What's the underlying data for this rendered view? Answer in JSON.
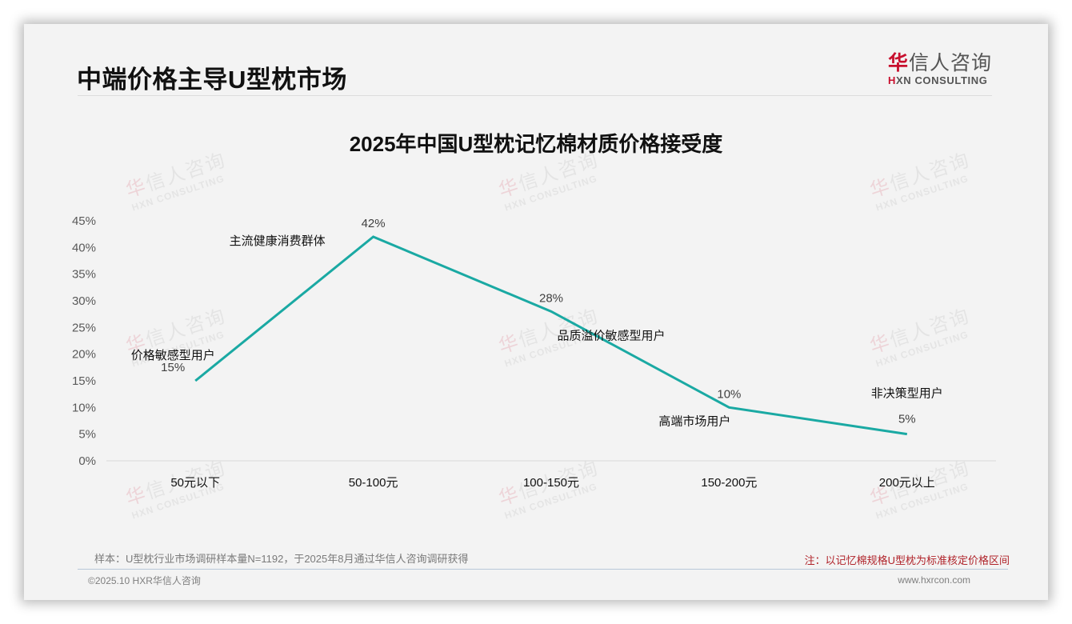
{
  "header": {
    "page_title": "中端价格主导U型枕市场",
    "logo": {
      "cn_first": "华",
      "cn_rest": "信人咨询",
      "en_first": "H",
      "en_rest": "XN CONSULTING"
    }
  },
  "chart_data": {
    "type": "line",
    "title": "2025年中国U型枕记忆棉材质价格接受度",
    "xlabel": "",
    "ylabel": "",
    "categories": [
      "50元以下",
      "50-100元",
      "100-150元",
      "150-200元",
      "200元以上"
    ],
    "values": [
      15,
      42,
      28,
      10,
      5
    ],
    "value_labels": [
      "15%",
      "42%",
      "28%",
      "10%",
      "5%"
    ],
    "annotations": [
      "价格敏感型用户",
      "主流健康消费群体",
      "品质溢价敏感型用户",
      "高端市场用户",
      "非决策型用户"
    ],
    "yticks": [
      "0%",
      "5%",
      "10%",
      "15%",
      "20%",
      "25%",
      "30%",
      "35%",
      "40%",
      "45%"
    ],
    "ylim": [
      0,
      45
    ],
    "grid": false,
    "legend": "none",
    "line_color": "#1aa9a3"
  },
  "watermark": {
    "cn_first": "华",
    "cn_rest": "信人咨询",
    "en": "HXN CONSULTING"
  },
  "footer": {
    "sample_note": "样本：U型枕行业市场调研样本量N=1192，于2025年8月通过华信人咨询调研获得",
    "red_note": "注：以记忆棉规格U型枕为标准核定价格区间",
    "copyright": "©2025.10 HXR华信人咨询",
    "website": "www.hxrcon.com"
  }
}
